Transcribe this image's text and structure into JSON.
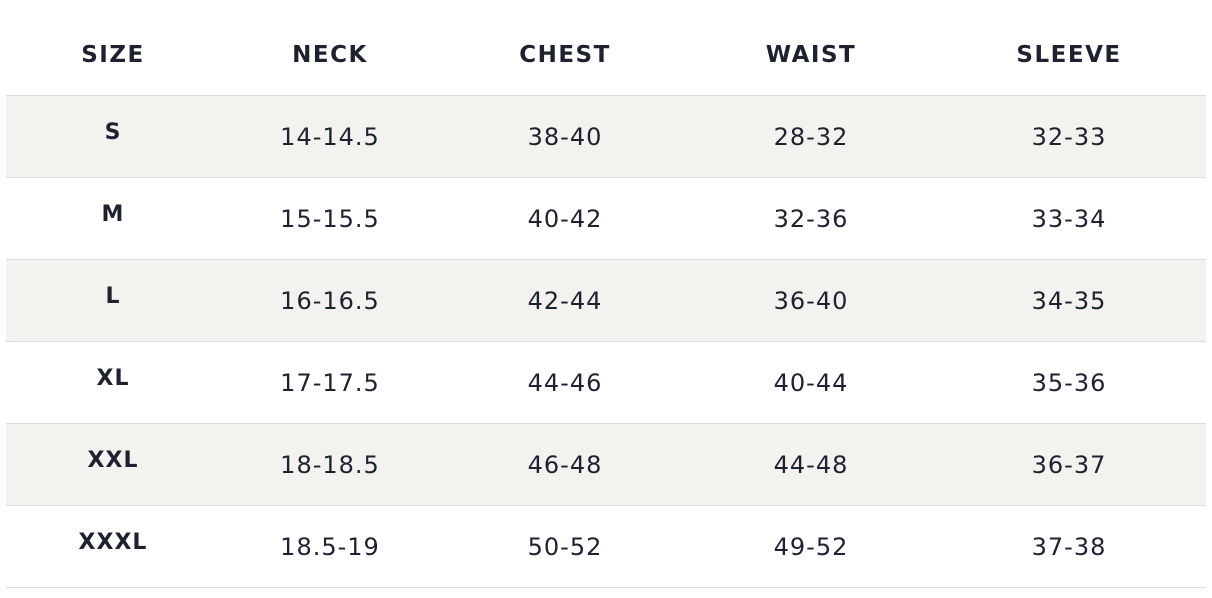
{
  "table": {
    "header": [
      "SIZE",
      "NECK",
      "CHEST",
      "WAIST",
      "SLEEVE"
    ],
    "rows": [
      [
        "S",
        "14-14.5",
        "38-40",
        "28-32",
        "32-33"
      ],
      [
        "M",
        "15-15.5",
        "40-42",
        "32-36",
        "33-34"
      ],
      [
        "L",
        "16-16.5",
        "42-44",
        "36-40",
        "34-35"
      ],
      [
        "XL",
        "17-17.5",
        "44-46",
        "40-44",
        "35-36"
      ],
      [
        "XXL",
        "18-18.5",
        "46-48",
        "44-48",
        "36-37"
      ],
      [
        "XXXL",
        "18.5-19",
        "50-52",
        "49-52",
        "37-38"
      ]
    ]
  }
}
